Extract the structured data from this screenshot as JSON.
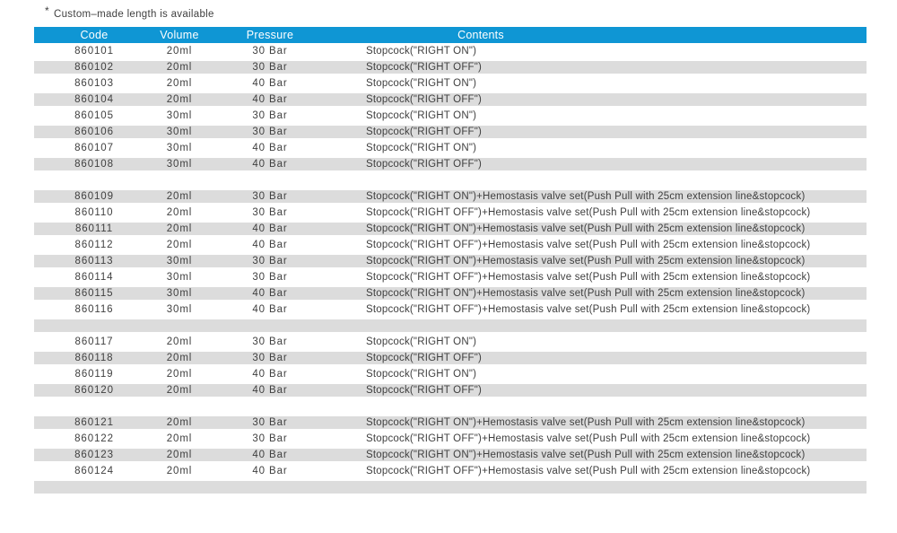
{
  "note": {
    "marker": "*",
    "text": "Custom–made length is available"
  },
  "table": {
    "headers": {
      "code": "Code",
      "volume": "Volume",
      "pressure": "Pressure",
      "contents": "Contents"
    },
    "rows": [
      {
        "code": "860101",
        "volume": "20ml",
        "pressure": "30 Bar",
        "contents": "Stopcock(\"RIGHT ON\")"
      },
      {
        "code": "860102",
        "volume": "20ml",
        "pressure": "30 Bar",
        "contents": "Stopcock(\"RIGHT OFF\")"
      },
      {
        "code": "860103",
        "volume": "20ml",
        "pressure": "40 Bar",
        "contents": "Stopcock(\"RIGHT ON\")"
      },
      {
        "code": "860104",
        "volume": "20ml",
        "pressure": "40 Bar",
        "contents": "Stopcock(\"RIGHT OFF\")"
      },
      {
        "code": "860105",
        "volume": "30ml",
        "pressure": "30 Bar",
        "contents": "Stopcock(\"RIGHT ON\")"
      },
      {
        "code": "860106",
        "volume": "30ml",
        "pressure": "30 Bar",
        "contents": "Stopcock(\"RIGHT OFF\")"
      },
      {
        "code": "860107",
        "volume": "30ml",
        "pressure": "40 Bar",
        "contents": "Stopcock(\"RIGHT ON\")"
      },
      {
        "code": "860108",
        "volume": "30ml",
        "pressure": "40 Bar",
        "contents": "Stopcock(\"RIGHT OFF\")"
      },
      {
        "code": "",
        "volume": "",
        "pressure": "",
        "contents": ""
      },
      {
        "code": "860109",
        "volume": "20ml",
        "pressure": "30 Bar",
        "contents": "Stopcock(\"RIGHT ON\")+Hemostasis valve set(Push Pull with 25cm extension line&stopcock)"
      },
      {
        "code": "860110",
        "volume": "20ml",
        "pressure": "30 Bar",
        "contents": "Stopcock(\"RIGHT OFF\")+Hemostasis valve set(Push Pull with 25cm extension line&stopcock)"
      },
      {
        "code": "860111",
        "volume": "20ml",
        "pressure": "40 Bar",
        "contents": "Stopcock(\"RIGHT ON\")+Hemostasis valve set(Push Pull with 25cm extension line&stopcock)"
      },
      {
        "code": "860112",
        "volume": "20ml",
        "pressure": "40 Bar",
        "contents": "Stopcock(\"RIGHT OFF\")+Hemostasis valve set(Push Pull with 25cm extension line&stopcock)"
      },
      {
        "code": "860113",
        "volume": "30ml",
        "pressure": "30 Bar",
        "contents": "Stopcock(\"RIGHT ON\")+Hemostasis valve set(Push Pull with 25cm extension line&stopcock)"
      },
      {
        "code": "860114",
        "volume": "30ml",
        "pressure": "30 Bar",
        "contents": "Stopcock(\"RIGHT OFF\")+Hemostasis valve set(Push Pull with 25cm extension line&stopcock)"
      },
      {
        "code": "860115",
        "volume": "30ml",
        "pressure": "40 Bar",
        "contents": "Stopcock(\"RIGHT ON\")+Hemostasis valve set(Push Pull with 25cm extension line&stopcock)"
      },
      {
        "code": "860116",
        "volume": "30ml",
        "pressure": "40 Bar",
        "contents": "Stopcock(\"RIGHT OFF\")+Hemostasis valve set(Push Pull with 25cm extension line&stopcock)"
      },
      {
        "code": "",
        "volume": "",
        "pressure": "",
        "contents": ""
      },
      {
        "code": "860117",
        "volume": "20ml",
        "pressure": "30 Bar",
        "contents": "Stopcock(\"RIGHT ON\")"
      },
      {
        "code": "860118",
        "volume": "20ml",
        "pressure": "30 Bar",
        "contents": "Stopcock(\"RIGHT OFF\")"
      },
      {
        "code": "860119",
        "volume": "20ml",
        "pressure": "40 Bar",
        "contents": "Stopcock(\"RIGHT ON\")"
      },
      {
        "code": "860120",
        "volume": "20ml",
        "pressure": "40 Bar",
        "contents": "Stopcock(\"RIGHT OFF\")"
      },
      {
        "code": "",
        "volume": "",
        "pressure": "",
        "contents": ""
      },
      {
        "code": "860121",
        "volume": "20ml",
        "pressure": "30 Bar",
        "contents": "Stopcock(\"RIGHT ON\")+Hemostasis valve set(Push Pull with 25cm extension line&stopcock)"
      },
      {
        "code": "860122",
        "volume": "20ml",
        "pressure": "30 Bar",
        "contents": "Stopcock(\"RIGHT OFF\")+Hemostasis valve set(Push Pull with 25cm extension line&stopcock)"
      },
      {
        "code": "860123",
        "volume": "20ml",
        "pressure": "40 Bar",
        "contents": "Stopcock(\"RIGHT ON\")+Hemostasis valve set(Push Pull with 25cm extension line&stopcock)"
      },
      {
        "code": "860124",
        "volume": "20ml",
        "pressure": "40 Bar",
        "contents": "Stopcock(\"RIGHT OFF\")+Hemostasis valve set(Push Pull with 25cm extension line&stopcock)"
      },
      {
        "code": "",
        "volume": "",
        "pressure": "",
        "contents": ""
      }
    ]
  },
  "colors": {
    "header_bg": "#0f96d4",
    "header_text": "#ffffff",
    "stripe_bg": "#dcdcdc",
    "text_color": "#3f3f3f",
    "page_bg": "#ffffff"
  }
}
